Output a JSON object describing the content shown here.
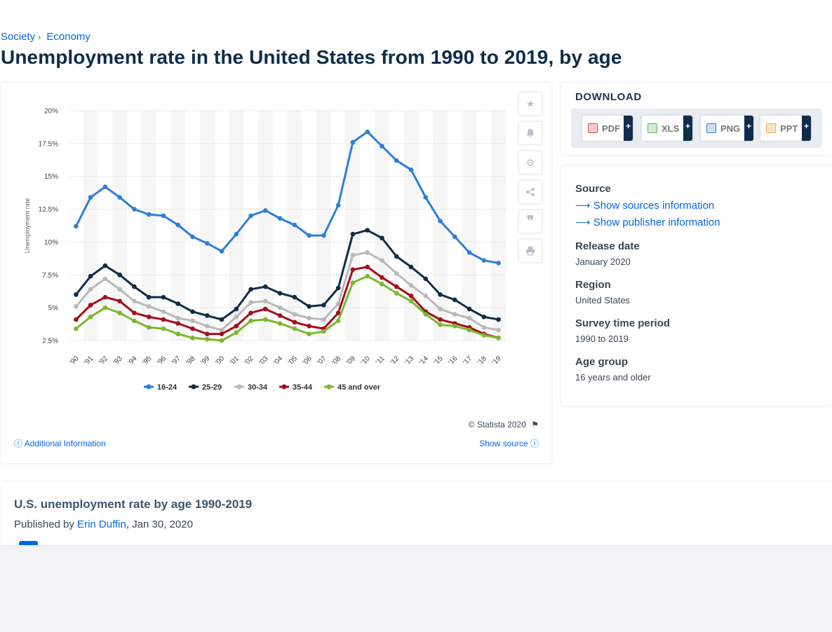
{
  "breadcrumb": {
    "items": [
      "Society",
      "Economy"
    ]
  },
  "page": {
    "title": "Unemployment rate in the United States from 1990 to 2019, by age"
  },
  "chart_data": {
    "type": "line",
    "ylabel": "Unemployment rate",
    "y_ticks": [
      "2.5%",
      "5%",
      "7.5%",
      "10%",
      "12.5%",
      "15%",
      "17.5%",
      "20%"
    ],
    "ylim": [
      2.5,
      20
    ],
    "x": [
      "'90",
      "'91",
      "'92",
      "'93",
      "'94",
      "'95",
      "'96",
      "'97",
      "'98",
      "'99",
      "'00",
      "'01",
      "'02",
      "'03",
      "'04",
      "'05",
      "'06",
      "'07",
      "'08",
      "'09",
      "'10",
      "'11",
      "'12",
      "'13",
      "'14",
      "'15",
      "'16",
      "'17",
      "'18",
      "'19"
    ],
    "legend": "bottom",
    "grid": true,
    "series": [
      {
        "name": "16-24",
        "color": "#2f7ed8",
        "values": [
          11.2,
          13.4,
          14.2,
          13.4,
          12.5,
          12.1,
          12.0,
          11.3,
          10.4,
          9.9,
          9.3,
          10.6,
          12.0,
          12.4,
          11.8,
          11.3,
          10.5,
          10.5,
          12.8,
          17.6,
          18.4,
          17.3,
          16.2,
          15.5,
          13.4,
          11.6,
          10.4,
          9.2,
          8.6,
          8.4
        ]
      },
      {
        "name": "25-29",
        "color": "#0f2d4a",
        "values": [
          6.0,
          7.4,
          8.2,
          7.5,
          6.6,
          5.8,
          5.8,
          5.3,
          4.7,
          4.4,
          4.1,
          4.9,
          6.4,
          6.6,
          6.1,
          5.8,
          5.1,
          5.2,
          6.5,
          10.6,
          10.9,
          10.3,
          8.9,
          8.1,
          7.2,
          6.0,
          5.6,
          4.9,
          4.3,
          4.1
        ]
      },
      {
        "name": "30-34",
        "color": "#b9b9b9",
        "values": [
          5.1,
          6.4,
          7.2,
          6.4,
          5.5,
          5.1,
          4.7,
          4.2,
          4.0,
          3.6,
          3.3,
          4.3,
          5.4,
          5.5,
          5.0,
          4.5,
          4.2,
          4.1,
          5.3,
          9.0,
          9.2,
          8.6,
          7.6,
          6.7,
          5.9,
          4.9,
          4.5,
          4.2,
          3.5,
          3.3
        ]
      },
      {
        "name": "35-44",
        "color": "#a30e1c",
        "values": [
          4.1,
          5.2,
          5.8,
          5.5,
          4.6,
          4.3,
          4.1,
          3.8,
          3.4,
          3.0,
          3.0,
          3.6,
          4.6,
          4.9,
          4.4,
          3.9,
          3.6,
          3.4,
          4.6,
          7.9,
          8.1,
          7.3,
          6.6,
          5.9,
          4.7,
          4.1,
          3.8,
          3.5,
          3.0,
          2.7
        ]
      },
      {
        "name": "45 and over",
        "color": "#7cb82f",
        "values": [
          3.4,
          4.3,
          5.0,
          4.6,
          4.0,
          3.5,
          3.4,
          3.0,
          2.7,
          2.6,
          2.5,
          3.1,
          4.0,
          4.1,
          3.8,
          3.4,
          3.0,
          3.2,
          4.0,
          6.9,
          7.4,
          6.8,
          6.1,
          5.5,
          4.5,
          3.7,
          3.6,
          3.3,
          2.9,
          2.7
        ]
      }
    ]
  },
  "chart_footer": {
    "copyright": "© Statista 2020",
    "additional_info": "Additional Information",
    "show_source": "Show source"
  },
  "download": {
    "title": "DOWNLOAD",
    "buttons": [
      {
        "label": "PDF",
        "icon": "pdf-file-icon",
        "color": "#d9534f"
      },
      {
        "label": "XLS",
        "icon": "xls-file-icon",
        "color": "#5cb85c"
      },
      {
        "label": "PNG",
        "icon": "png-file-icon",
        "color": "#3a7bd5"
      },
      {
        "label": "PPT",
        "icon": "ppt-file-icon",
        "color": "#f0ad4e"
      }
    ]
  },
  "meta": {
    "source_heading": "Source",
    "show_sources": "Show sources information",
    "show_publisher": "Show publisher information",
    "release_heading": "Release date",
    "release_value": "January 2020",
    "region_heading": "Region",
    "region_value": "United States",
    "survey_heading": "Survey time period",
    "survey_value": "1990 to 2019",
    "age_heading": "Age group",
    "age_value": "16 years and older"
  },
  "publication": {
    "title": "U.S. unemployment rate by age 1990-2019",
    "published_by": "Published by",
    "author": "Erin Duffin",
    "date": ", Jan 30, 2020"
  }
}
